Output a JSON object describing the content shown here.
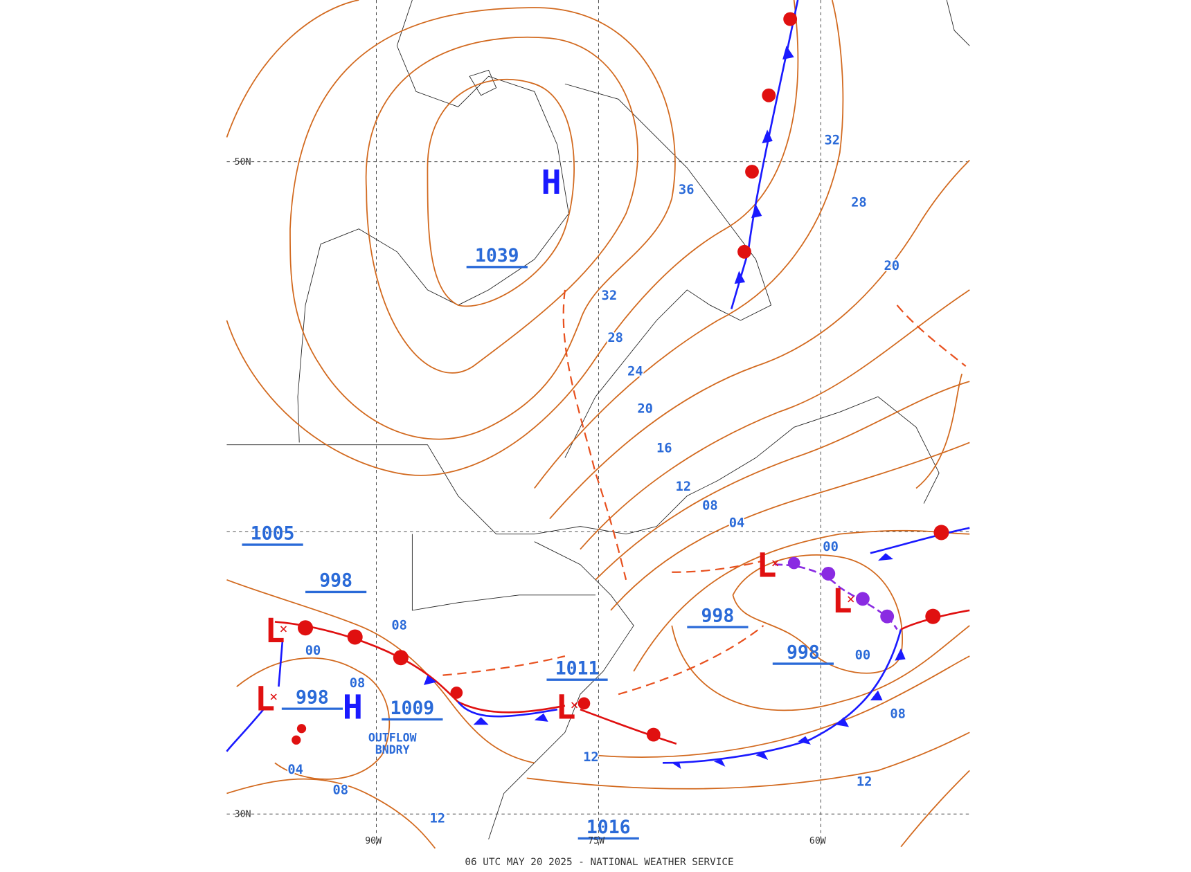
{
  "map": {
    "caption": "06 UTC MAY 20 2025 - NATIONAL WEATHER SERVICE",
    "centers": [
      "H",
      "H",
      "L",
      "L",
      "L",
      "L",
      "L"
    ],
    "pressure_labels": [
      "1039",
      "1005",
      "998",
      "998",
      "1009",
      "1011",
      "998",
      "998",
      "1016"
    ],
    "isobar_labels": [
      "32",
      "28",
      "20",
      "36",
      "32",
      "28",
      "24",
      "20",
      "16",
      "12",
      "08",
      "04",
      "00",
      "00",
      "08",
      "08",
      "04",
      "08",
      "12",
      "12",
      "00",
      "08",
      "12"
    ],
    "grid_labels": [
      "90W",
      "75W",
      "60W",
      "50N",
      "30N"
    ],
    "annotation": [
      "OUTFLOW",
      "BNDRY"
    ]
  }
}
